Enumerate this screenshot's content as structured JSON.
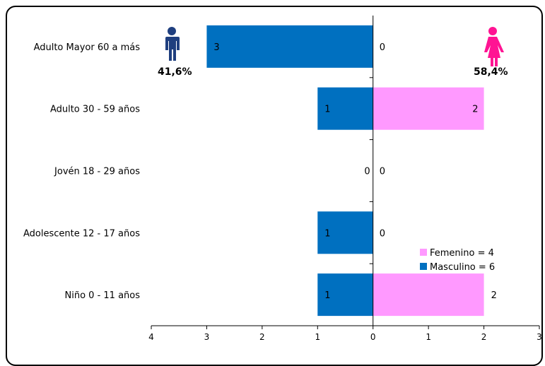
{
  "chart_data": {
    "type": "bar",
    "orientation": "horizontal-diverging",
    "categories": [
      "Adulto Mayor 60 a más",
      "Adulto 30 - 59 años",
      "Jovén 18 - 29 años",
      "Adolescente 12 - 17 años",
      "Niño 0 - 11 años"
    ],
    "series": [
      {
        "name": "Masculino = 6",
        "values": [
          3,
          1,
          0,
          1,
          1
        ],
        "color": "#0070C0",
        "side": "left"
      },
      {
        "name": "Femenino = 4",
        "values": [
          0,
          2,
          0,
          0,
          2
        ],
        "color": "#FF99FF",
        "side": "right"
      }
    ],
    "xlim": [
      -4,
      3
    ],
    "x_tick_labels": [
      "4",
      "3",
      "2",
      "1",
      "0",
      "1",
      "2",
      "3"
    ],
    "grid": false,
    "legend_position": "bottom-right",
    "annotations": {
      "male_percent": "41,6%",
      "female_percent": "58,4%",
      "male_icon": "male-person-icon",
      "female_icon": "female-person-icon",
      "male_icon_color": "#1F3F7F",
      "female_icon_color": "#FF1493"
    }
  }
}
